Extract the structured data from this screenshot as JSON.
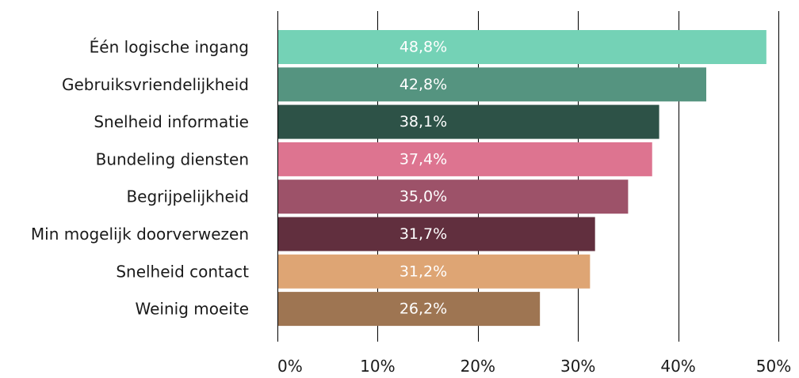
{
  "chart_data": {
    "type": "bar",
    "orientation": "horizontal",
    "categories": [
      "Één logische ingang",
      "Gebruiksvriendelijkheid",
      "Snelheid informatie",
      "Bundeling diensten",
      "Begrijpelijkheid",
      "Min mogelijk doorverwezen",
      "Snelheid contact",
      "Weinig moeite"
    ],
    "values": [
      48.8,
      42.8,
      38.1,
      37.4,
      35.0,
      31.7,
      31.2,
      26.2
    ],
    "value_labels": [
      "48,8%",
      "42,8%",
      "38,1%",
      "37,4%",
      "35,0%",
      "31,7%",
      "31,2%",
      "26,2%"
    ],
    "colors": [
      "#74d2b6",
      "#559480",
      "#2d5247",
      "#dd7490",
      "#9d5269",
      "#612f3e",
      "#dea574",
      "#9e7552"
    ],
    "xlim": [
      0,
      50
    ],
    "xticks": [
      0,
      10,
      20,
      30,
      40,
      50
    ],
    "xtick_labels": [
      "0%",
      "10%",
      "20%",
      "30%",
      "40%",
      "50%"
    ],
    "grid": "vertical",
    "legend": "none",
    "title": "",
    "xlabel": "",
    "ylabel": ""
  }
}
